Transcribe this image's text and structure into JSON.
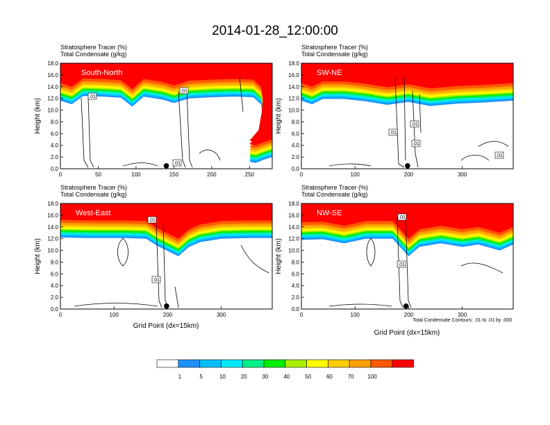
{
  "figure": {
    "title": "2014-01-28_12:00:00",
    "subtitle_line1": "Stratosphere Tracer   (%)",
    "subtitle_line2": "Total Condensate   (g/kg)",
    "y_axis_label": "Height (km)",
    "x_axis_label": "Grid Point (dx=15km)",
    "contour_note": "Total Condensate Contours: .01 to .01 by .000",
    "contour_label": ".01"
  },
  "colorbar": {
    "levels": [
      "1",
      "5",
      "10",
      "20",
      "30",
      "40",
      "50",
      "60",
      "70",
      "100"
    ],
    "colors": [
      "#ffffff",
      "#1e90ff",
      "#00bfff",
      "#00eaff",
      "#00ee88",
      "#00ee00",
      "#aaee00",
      "#ffff00",
      "#ffcc00",
      "#ffa000",
      "#ff5a00",
      "#ff0000"
    ]
  },
  "chart_data": [
    {
      "type": "heatmap",
      "panel_label": "South-North",
      "ylim": [
        0,
        18
      ],
      "xlim": [
        0,
        280
      ],
      "y_ticks": [
        "0.0",
        "2.0",
        "4.0",
        "6.0",
        "8.0",
        "10.0",
        "12.0",
        "14.0",
        "16.0",
        "18.0"
      ],
      "x_ticks": [
        {
          "v": 0,
          "t": "0"
        },
        {
          "v": 50,
          "t": "50"
        },
        {
          "v": 100,
          "t": "100"
        },
        {
          "v": 150,
          "t": "150"
        },
        {
          "v": 200,
          "t": "200"
        },
        {
          "v": 250,
          "t": "250"
        }
      ],
      "marker": {
        "x": 140,
        "y": 0.5
      },
      "tropopause_km": [
        [
          0,
          14.6
        ],
        [
          15,
          14.0
        ],
        [
          30,
          15.4
        ],
        [
          55,
          15.3
        ],
        [
          80,
          15.1
        ],
        [
          95,
          13.6
        ],
        [
          110,
          15.3
        ],
        [
          135,
          14.8
        ],
        [
          150,
          14.2
        ],
        [
          170,
          15.0
        ],
        [
          200,
          15.2
        ],
        [
          230,
          15.3
        ],
        [
          255,
          15.2
        ],
        [
          265,
          14.0
        ],
        [
          268,
          12.0
        ],
        [
          266,
          9.0
        ],
        [
          262,
          6.0
        ],
        [
          250,
          4.2
        ],
        [
          258,
          4.0
        ],
        [
          270,
          4.6
        ],
        [
          280,
          5.0
        ]
      ]
    },
    {
      "type": "heatmap",
      "panel_label": "SW-NE",
      "ylim": [
        0,
        18
      ],
      "xlim": [
        0,
        395
      ],
      "y_ticks": [
        "0.0",
        "2.0",
        "4.0",
        "6.0",
        "8.0",
        "10.0",
        "12.0",
        "14.0",
        "16.0",
        "18.0"
      ],
      "x_ticks": [
        {
          "v": 0,
          "t": "0"
        },
        {
          "v": 100,
          "t": "100"
        },
        {
          "v": 200,
          "t": "200"
        },
        {
          "v": 300,
          "t": "300"
        }
      ],
      "marker": {
        "x": 198,
        "y": 0.5
      },
      "tropopause_km": [
        [
          0,
          14.6
        ],
        [
          20,
          14.0
        ],
        [
          40,
          14.9
        ],
        [
          80,
          14.9
        ],
        [
          120,
          14.5
        ],
        [
          160,
          13.9
        ],
        [
          200,
          14.4
        ],
        [
          240,
          13.7
        ],
        [
          290,
          14.1
        ],
        [
          340,
          14.3
        ],
        [
          395,
          14.6
        ]
      ]
    },
    {
      "type": "heatmap",
      "panel_label": "West-East",
      "ylim": [
        0,
        18
      ],
      "xlim": [
        0,
        395
      ],
      "y_ticks": [
        "0.0",
        "2.0",
        "4.0",
        "6.0",
        "8.0",
        "10.0",
        "12.0",
        "14.0",
        "16.0",
        "18.0"
      ],
      "x_ticks": [
        {
          "v": 0,
          "t": "0"
        },
        {
          "v": 100,
          "t": "100"
        },
        {
          "v": 200,
          "t": "200"
        },
        {
          "v": 300,
          "t": "300"
        }
      ],
      "marker": {
        "x": 198,
        "y": 0.5
      },
      "tropopause_km": [
        [
          0,
          15.2
        ],
        [
          60,
          15.1
        ],
        [
          120,
          15.1
        ],
        [
          160,
          15.0
        ],
        [
          180,
          13.8
        ],
        [
          220,
          12.0
        ],
        [
          240,
          13.6
        ],
        [
          260,
          14.4
        ],
        [
          300,
          15.0
        ],
        [
          350,
          15.1
        ],
        [
          395,
          15.1
        ]
      ]
    },
    {
      "type": "heatmap",
      "panel_label": "NW-SE",
      "ylim": [
        0,
        18
      ],
      "xlim": [
        0,
        395
      ],
      "y_ticks": [
        "0.0",
        "2.0",
        "4.0",
        "6.0",
        "8.0",
        "10.0",
        "12.0",
        "14.0",
        "16.0",
        "18.0"
      ],
      "x_ticks": [
        {
          "v": 0,
          "t": "0"
        },
        {
          "v": 100,
          "t": "100"
        },
        {
          "v": 200,
          "t": "200"
        },
        {
          "v": 300,
          "t": "300"
        }
      ],
      "marker": {
        "x": 195,
        "y": 0.5
      },
      "tropopause_km": [
        [
          0,
          14.8
        ],
        [
          40,
          14.9
        ],
        [
          80,
          14.2
        ],
        [
          120,
          15.0
        ],
        [
          170,
          15.0
        ],
        [
          200,
          12.0
        ],
        [
          220,
          13.6
        ],
        [
          260,
          14.2
        ],
        [
          300,
          13.6
        ],
        [
          330,
          14.0
        ],
        [
          370,
          13.0
        ],
        [
          395,
          14.0
        ]
      ]
    }
  ]
}
